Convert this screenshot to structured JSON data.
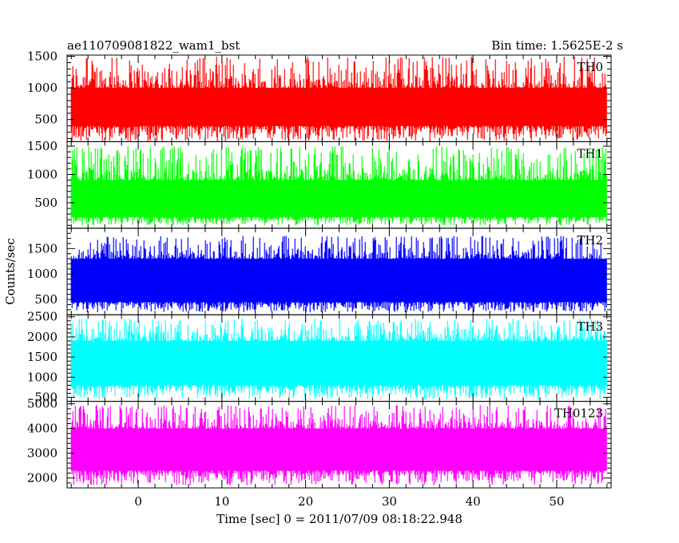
{
  "header": {
    "title": "ae110709081822_wam1_bst",
    "bin_time": "Bin time: 1.5625E-2 s"
  },
  "chart_data": {
    "type": "line",
    "title": "ae110709081822_wam1_bst",
    "subtitle": "Bin time: 1.5625E-2 s",
    "xlabel": "Time [sec] 0 = 2011/07/09 08:18:22.948",
    "ylabel": "Counts/sec",
    "xlim": [
      -8.5,
      56.5
    ],
    "data_x_range": [
      -8.0,
      56.0
    ],
    "xticks": [
      0,
      10,
      20,
      30,
      40,
      50
    ],
    "panels": [
      {
        "name": "TH0",
        "color": "#ff0000",
        "ylim": [
          150,
          1520
        ],
        "yticks": [
          500,
          1000,
          1500
        ],
        "baseline_low": 150,
        "typical_low": 400,
        "typical_high": 1000,
        "peak_high": 1500
      },
      {
        "name": "TH1",
        "color": "#00ff00",
        "ylim": [
          50,
          1580
        ],
        "yticks": [
          500,
          1000,
          1500
        ],
        "baseline_low": 100,
        "typical_low": 250,
        "typical_high": 900,
        "peak_high": 1500
      },
      {
        "name": "TH2",
        "color": "#0000ff",
        "ylim": [
          200,
          1900
        ],
        "yticks": [
          500,
          1000,
          1500
        ],
        "baseline_low": 250,
        "typical_low": 450,
        "typical_high": 1300,
        "peak_high": 1750
      },
      {
        "name": "TH3",
        "color": "#00ffff",
        "ylim": [
          400,
          2550
        ],
        "yticks": [
          500,
          1000,
          1500,
          2000,
          2500
        ],
        "baseline_low": 450,
        "typical_low": 800,
        "typical_high": 1900,
        "peak_high": 2450
      },
      {
        "name": "TH0123",
        "color": "#ff00ff",
        "ylim": [
          1600,
          5100
        ],
        "yticks": [
          2000,
          3000,
          4000,
          5000
        ],
        "baseline_low": 1700,
        "typical_low": 2300,
        "typical_high": 4000,
        "peak_high": 4950
      }
    ]
  }
}
